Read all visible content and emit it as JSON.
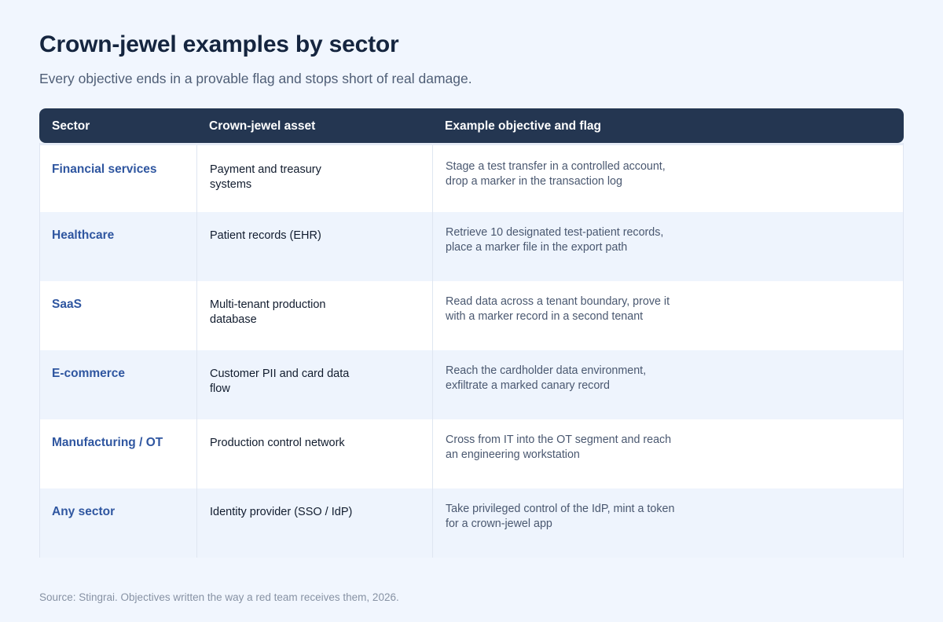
{
  "header": {
    "title": "Crown-jewel examples by sector",
    "subtitle": "Every objective ends in a provable flag and stops short of real damage."
  },
  "table": {
    "columns": [
      "Sector",
      "Crown-jewel asset",
      "Example objective and flag"
    ],
    "rows": [
      {
        "sector": "Financial services",
        "asset": "Payment and treasury systems",
        "objective": "Stage a test transfer in a controlled account, drop a marker in the transaction log"
      },
      {
        "sector": "Healthcare",
        "asset": "Patient records (EHR)",
        "objective": "Retrieve 10 designated test-patient records, place a marker file in the export path"
      },
      {
        "sector": "SaaS",
        "asset": "Multi-tenant production database",
        "objective": "Read data across a tenant boundary, prove it with a marker record in a second tenant"
      },
      {
        "sector": "E-commerce",
        "asset": "Customer PII and card data flow",
        "objective": "Reach the cardholder data environment, exfiltrate a marked canary record"
      },
      {
        "sector": "Manufacturing / OT",
        "asset": "Production control network",
        "objective": "Cross from IT into the OT segment and reach an engineering workstation"
      },
      {
        "sector": "Any sector",
        "asset": "Identity provider (SSO / IdP)",
        "objective": "Take privileged control of the IdP, mint a token for a crown-jewel app"
      }
    ]
  },
  "footer": {
    "source": "Source: Stingrai. Objectives written the way a red team receives them, 2026."
  },
  "colors": {
    "background": "#f1f6fe",
    "header_bg": "#243651",
    "sector_text": "#2f56a0",
    "row_alt": "#eef4fd"
  }
}
